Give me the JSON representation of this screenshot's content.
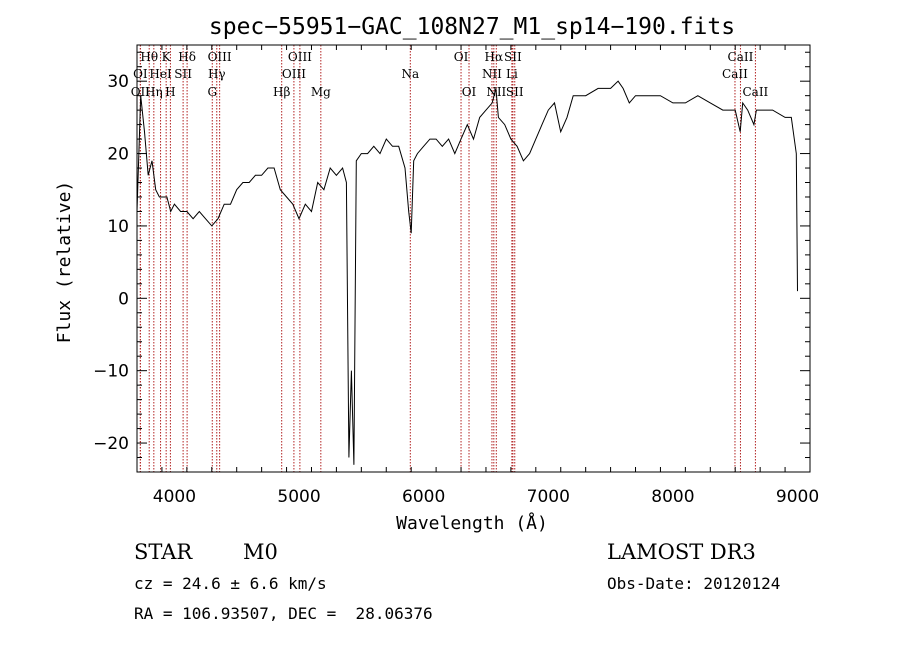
{
  "chart_data": {
    "type": "line",
    "title": "spec−55951−GAC_108N27_M1_sp14−190.fits",
    "xlabel": "Wavelength (Å)",
    "ylabel": "Flux (relative)",
    "xlim": [
      3700,
      9100
    ],
    "ylim": [
      -24,
      35
    ],
    "xticks": [
      4000,
      5000,
      6000,
      7000,
      8000,
      9000
    ],
    "xtick_labels": [
      "4000",
      "5000",
      "6000",
      "7000",
      "8000",
      "9000"
    ],
    "yticks": [
      -20,
      -10,
      0,
      10,
      20,
      30
    ],
    "ytick_labels": [
      "−20",
      "−10",
      "0",
      "10",
      "20",
      "30"
    ],
    "grid": false,
    "series": [
      {
        "name": "flux",
        "x": [
          3700,
          3730,
          3760,
          3790,
          3820,
          3850,
          3880,
          3910,
          3940,
          3970,
          4000,
          4050,
          4100,
          4150,
          4200,
          4250,
          4300,
          4350,
          4400,
          4450,
          4500,
          4550,
          4600,
          4650,
          4700,
          4750,
          4800,
          4850,
          4900,
          4950,
          5000,
          5050,
          5100,
          5150,
          5200,
          5250,
          5300,
          5350,
          5380,
          5400,
          5420,
          5440,
          5460,
          5500,
          5550,
          5600,
          5650,
          5700,
          5750,
          5800,
          5850,
          5880,
          5900,
          5920,
          5950,
          6000,
          6050,
          6100,
          6150,
          6200,
          6250,
          6300,
          6350,
          6400,
          6450,
          6500,
          6550,
          6580,
          6600,
          6650,
          6700,
          6750,
          6800,
          6850,
          6900,
          6950,
          7000,
          7050,
          7100,
          7150,
          7200,
          7300,
          7400,
          7500,
          7560,
          7600,
          7650,
          7700,
          7800,
          7900,
          8000,
          8100,
          8200,
          8300,
          8400,
          8500,
          8540,
          8560,
          8600,
          8650,
          8670,
          8700,
          8800,
          8900,
          8950,
          8990,
          9000
        ],
        "y": [
          12,
          28,
          23,
          17,
          19,
          15,
          14,
          14,
          14,
          12,
          13,
          12,
          12,
          11,
          12,
          11,
          10,
          11,
          13,
          13,
          15,
          16,
          16,
          17,
          17,
          18,
          18,
          15,
          14,
          13,
          11,
          13,
          12,
          16,
          15,
          18,
          17,
          18,
          16,
          -22,
          -10,
          -23,
          19,
          20,
          20,
          21,
          20,
          22,
          21,
          21,
          18,
          12,
          9,
          19,
          20,
          21,
          22,
          22,
          21,
          22,
          20,
          22,
          24,
          22,
          25,
          26,
          27,
          29,
          25,
          24,
          22,
          21,
          19,
          20,
          22,
          24,
          26,
          27,
          23,
          25,
          28,
          28,
          29,
          29,
          30,
          29,
          27,
          28,
          28,
          28,
          27,
          27,
          28,
          27,
          26,
          26,
          23,
          27,
          26,
          24,
          26,
          26,
          26,
          25,
          25,
          20,
          1
        ]
      }
    ],
    "annotations": {
      "line_markers": [
        {
          "label": "Hθ",
          "wavelength": 3798,
          "row": 1
        },
        {
          "label": "K",
          "wavelength": 3934,
          "row": 1
        },
        {
          "label": "Hδ",
          "wavelength": 4102,
          "row": 1
        },
        {
          "label": "OIII",
          "wavelength": 4363,
          "row": 1
        },
        {
          "label": "OIII",
          "wavelength": 5007,
          "row": 1
        },
        {
          "label": "OI",
          "wavelength": 6300,
          "row": 1
        },
        {
          "label": "Hα",
          "wavelength": 6563,
          "row": 1
        },
        {
          "label": "SII",
          "wavelength": 6716,
          "row": 1
        },
        {
          "label": "CaII",
          "wavelength": 8542,
          "row": 1
        },
        {
          "label": "OI",
          "wavelength": 3727,
          "row": 2
        },
        {
          "label": "HeI",
          "wavelength": 3889,
          "row": 2
        },
        {
          "label": "SII",
          "wavelength": 4070,
          "row": 2
        },
        {
          "label": "Hγ",
          "wavelength": 4340,
          "row": 2
        },
        {
          "label": "OIII",
          "wavelength": 4959,
          "row": 2
        },
        {
          "label": "Na",
          "wavelength": 5893,
          "row": 2
        },
        {
          "label": "NII",
          "wavelength": 6548,
          "row": 2
        },
        {
          "label": "Li",
          "wavelength": 6708,
          "row": 2
        },
        {
          "label": "CaII",
          "wavelength": 8498,
          "row": 2
        },
        {
          "label": "OII",
          "wavelength": 3727,
          "row": 3
        },
        {
          "label": "Hη",
          "wavelength": 3835,
          "row": 3
        },
        {
          "label": "H",
          "wavelength": 3968,
          "row": 3
        },
        {
          "label": "G",
          "wavelength": 4304,
          "row": 3
        },
        {
          "label": "Hβ",
          "wavelength": 4861,
          "row": 3
        },
        {
          "label": "Mg",
          "wavelength": 5175,
          "row": 3
        },
        {
          "label": "OI",
          "wavelength": 6364,
          "row": 3
        },
        {
          "label": "NII",
          "wavelength": 6583,
          "row": 3
        },
        {
          "label": "SII",
          "wavelength": 6731,
          "row": 3
        },
        {
          "label": "CaII",
          "wavelength": 8662,
          "row": 3
        }
      ]
    },
    "marker_color": "#b22222"
  },
  "info": {
    "object_class": "STAR",
    "subclass": "M0",
    "survey": "LAMOST DR3",
    "redshift": "cz = 24.6 ± 6.6 km/s",
    "obs_date": "Obs-Date: 20120124",
    "coords": "RA = 106.93507, DEC =  28.06376"
  }
}
